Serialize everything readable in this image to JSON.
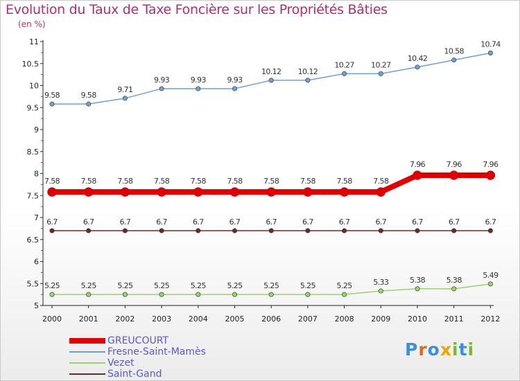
{
  "title": "Evolution du Taux de Taxe Foncière sur les Propriétés Bâties",
  "subtitle": "(en %)",
  "brand": {
    "letters": [
      "P",
      "r",
      "o",
      "x",
      "i",
      "t",
      "i"
    ],
    "colors": [
      "#3a8fd6",
      "#e0691e",
      "#3a8fd6",
      "#f0a400",
      "#7db832",
      "#3a8fd6",
      "#7db832"
    ]
  },
  "chart_data": {
    "type": "line",
    "title": "Evolution du Taux de Taxe Foncière sur les Propriétés Bâties",
    "ylabel": "(en %)",
    "xlabel": "",
    "ylim": [
      5,
      11
    ],
    "yticks": [
      "5",
      "5.5",
      "6",
      "6.5",
      "7",
      "7.5",
      "8",
      "8.5",
      "9",
      "9.5",
      "10",
      "10.5",
      "11"
    ],
    "categories": [
      "2000",
      "2001",
      "2002",
      "2003",
      "2004",
      "2005",
      "2006",
      "2007",
      "2008",
      "2009",
      "2010",
      "2011",
      "2012"
    ],
    "series": [
      {
        "name": "GREUCOURT",
        "color": "#e00000",
        "values": [
          7.58,
          7.58,
          7.58,
          7.58,
          7.58,
          7.58,
          7.58,
          7.58,
          7.58,
          7.58,
          7.96,
          7.96,
          7.96
        ],
        "labels": [
          "7.58",
          "7.58",
          "7.58",
          "7.58",
          "7.58",
          "7.58",
          "7.58",
          "7.58",
          "7.58",
          "7.58",
          "7.96",
          "7.96",
          "7.96"
        ]
      },
      {
        "name": "Fresne-Saint-Mamès",
        "color": "#6fa0cf",
        "values": [
          9.58,
          9.58,
          9.71,
          9.93,
          9.93,
          9.93,
          10.12,
          10.12,
          10.27,
          10.27,
          10.42,
          10.58,
          10.74
        ],
        "labels": [
          "9.58",
          "9.58",
          "9.71",
          "9.93",
          "9.93",
          "9.93",
          "10.12",
          "10.12",
          "10.27",
          "10.27",
          "10.42",
          "10.58",
          "10.74"
        ]
      },
      {
        "name": "Vezet",
        "color": "#98d46a",
        "values": [
          5.25,
          5.25,
          5.25,
          5.25,
          5.25,
          5.25,
          5.25,
          5.25,
          5.25,
          5.33,
          5.38,
          5.38,
          5.49
        ],
        "labels": [
          "5.25",
          "5.25",
          "5.25",
          "5.25",
          "5.25",
          "5.25",
          "5.25",
          "5.25",
          "5.25",
          "5.33",
          "5.38",
          "5.38",
          "5.49"
        ]
      },
      {
        "name": "Saint-Gand",
        "color": "#6b2a2a",
        "values": [
          6.7,
          6.7,
          6.7,
          6.7,
          6.7,
          6.7,
          6.7,
          6.7,
          6.7,
          6.7,
          6.7,
          6.7,
          6.7
        ],
        "labels": [
          "6.7",
          "6.7",
          "6.7",
          "6.7",
          "6.7",
          "6.7",
          "6.7",
          "6.7",
          "6.7",
          "6.7",
          "6.7",
          "6.7",
          "6.7"
        ]
      }
    ],
    "grid": false,
    "legend": "bottom-left"
  }
}
